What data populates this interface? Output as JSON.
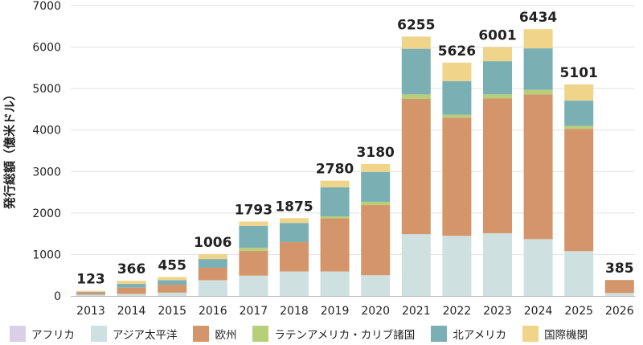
{
  "chart_data": {
    "type": "bar",
    "stacked": true,
    "title": "",
    "xlabel": "",
    "ylabel": "発行総額（億米ドル）",
    "ylim": [
      0,
      7000
    ],
    "yticks": [
      0,
      1000,
      2000,
      3000,
      4000,
      5000,
      6000,
      7000
    ],
    "grid": true,
    "legend_position": "bottom",
    "categories": [
      "2013",
      "2014",
      "2015",
      "2016",
      "2017",
      "2018",
      "2019",
      "2020",
      "2021",
      "2022",
      "2023",
      "2024",
      "2025",
      "2026"
    ],
    "totals": [
      123,
      366,
      455,
      1006,
      1793,
      1875,
      2780,
      3180,
      6255,
      5626,
      6001,
      6434,
      5101,
      385
    ],
    "series": [
      {
        "name": "アフリカ",
        "color": "#d9cfe6",
        "values": [
          0,
          0,
          0,
          0,
          0,
          0,
          0,
          0,
          0,
          0,
          0,
          0,
          0,
          0
        ]
      },
      {
        "name": "アジア太平洋",
        "color": "#cfe0e0",
        "values": [
          30,
          50,
          80,
          380,
          490,
          590,
          590,
          500,
          1490,
          1450,
          1510,
          1370,
          1080,
          70
        ]
      },
      {
        "name": "欧州",
        "color": "#d4956a",
        "values": [
          50,
          150,
          190,
          300,
          600,
          710,
          1280,
          1690,
          3260,
          2850,
          3250,
          3490,
          2950,
          315
        ]
      },
      {
        "name": "ラテンアメリカ・カリブ諸国",
        "color": "#b8cf7a",
        "values": [
          0,
          0,
          0,
          0,
          70,
          0,
          50,
          80,
          110,
          70,
          100,
          110,
          70,
          0
        ]
      },
      {
        "name": "北アメリカ",
        "color": "#7ab0b4",
        "values": [
          20,
          90,
          110,
          210,
          530,
          460,
          700,
          720,
          1100,
          810,
          800,
          1000,
          610,
          0
        ]
      },
      {
        "name": "国際機関",
        "color": "#f0d48a",
        "values": [
          23,
          76,
          75,
          116,
          103,
          115,
          160,
          190,
          295,
          446,
          341,
          464,
          391,
          0
        ]
      }
    ]
  }
}
